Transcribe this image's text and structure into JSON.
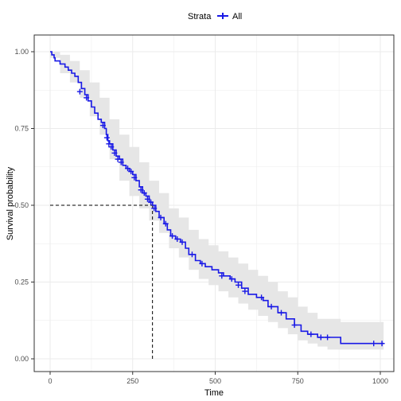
{
  "chart_data": {
    "type": "line",
    "subtype": "kaplan-meier survival curve with confidence band",
    "xlabel": "Time",
    "ylabel": "Survival probability",
    "xlim": [
      0,
      1022
    ],
    "ylim": [
      0,
      1.0
    ],
    "x_ticks": [
      0,
      250,
      500,
      750,
      1000
    ],
    "x_tick_labels": [
      "0",
      "250",
      "500",
      "750",
      "1000"
    ],
    "y_ticks": [
      0,
      0.25,
      0.5,
      0.75,
      1.0
    ],
    "y_tick_labels": [
      "0.00",
      "0.25",
      "0.50",
      "0.75",
      "1.00"
    ],
    "grid": true,
    "legend": {
      "position": "top",
      "title": "Strata",
      "entries": [
        "All"
      ]
    },
    "colors": {
      "curve": "#1919e6",
      "band": "#e6e6e6",
      "grid": "#ebebeb",
      "median_line": "#000000"
    },
    "median": {
      "time": 310,
      "survival": 0.5
    },
    "series": [
      {
        "name": "All",
        "steps": [
          [
            0,
            1.0
          ],
          [
            5,
            0.99
          ],
          [
            12,
            0.98
          ],
          [
            15,
            0.97
          ],
          [
            30,
            0.96
          ],
          [
            45,
            0.95
          ],
          [
            55,
            0.94
          ],
          [
            65,
            0.93
          ],
          [
            75,
            0.92
          ],
          [
            85,
            0.9
          ],
          [
            95,
            0.88
          ],
          [
            105,
            0.86
          ],
          [
            115,
            0.84
          ],
          [
            125,
            0.82
          ],
          [
            135,
            0.8
          ],
          [
            145,
            0.78
          ],
          [
            155,
            0.77
          ],
          [
            165,
            0.75
          ],
          [
            170,
            0.73
          ],
          [
            175,
            0.71
          ],
          [
            180,
            0.7
          ],
          [
            190,
            0.68
          ],
          [
            200,
            0.66
          ],
          [
            210,
            0.65
          ],
          [
            220,
            0.63
          ],
          [
            230,
            0.62
          ],
          [
            240,
            0.61
          ],
          [
            250,
            0.6
          ],
          [
            260,
            0.58
          ],
          [
            270,
            0.56
          ],
          [
            280,
            0.54
          ],
          [
            290,
            0.53
          ],
          [
            300,
            0.51
          ],
          [
            310,
            0.5
          ],
          [
            320,
            0.48
          ],
          [
            330,
            0.46
          ],
          [
            345,
            0.44
          ],
          [
            355,
            0.42
          ],
          [
            365,
            0.4
          ],
          [
            380,
            0.39
          ],
          [
            395,
            0.38
          ],
          [
            410,
            0.36
          ],
          [
            420,
            0.34
          ],
          [
            440,
            0.32
          ],
          [
            455,
            0.31
          ],
          [
            470,
            0.3
          ],
          [
            490,
            0.29
          ],
          [
            510,
            0.28
          ],
          [
            525,
            0.27
          ],
          [
            545,
            0.26
          ],
          [
            560,
            0.25
          ],
          [
            580,
            0.23
          ],
          [
            600,
            0.21
          ],
          [
            625,
            0.2
          ],
          [
            645,
            0.19
          ],
          [
            660,
            0.17
          ],
          [
            690,
            0.15
          ],
          [
            715,
            0.13
          ],
          [
            740,
            0.11
          ],
          [
            760,
            0.09
          ],
          [
            780,
            0.08
          ],
          [
            810,
            0.07
          ],
          [
            880,
            0.05
          ],
          [
            1010,
            0.05
          ]
        ],
        "censored": [
          [
            90,
            0.87
          ],
          [
            110,
            0.85
          ],
          [
            160,
            0.76
          ],
          [
            172,
            0.72
          ],
          [
            178,
            0.7
          ],
          [
            185,
            0.69
          ],
          [
            195,
            0.67
          ],
          [
            205,
            0.65
          ],
          [
            215,
            0.64
          ],
          [
            235,
            0.62
          ],
          [
            245,
            0.61
          ],
          [
            255,
            0.59
          ],
          [
            275,
            0.55
          ],
          [
            285,
            0.54
          ],
          [
            295,
            0.52
          ],
          [
            305,
            0.51
          ],
          [
            315,
            0.49
          ],
          [
            335,
            0.46
          ],
          [
            350,
            0.44
          ],
          [
            370,
            0.4
          ],
          [
            385,
            0.39
          ],
          [
            400,
            0.38
          ],
          [
            430,
            0.34
          ],
          [
            460,
            0.31
          ],
          [
            520,
            0.27
          ],
          [
            550,
            0.26
          ],
          [
            570,
            0.24
          ],
          [
            590,
            0.22
          ],
          [
            640,
            0.2
          ],
          [
            670,
            0.17
          ],
          [
            700,
            0.15
          ],
          [
            740,
            0.11
          ],
          [
            790,
            0.08
          ],
          [
            820,
            0.07
          ],
          [
            840,
            0.07
          ],
          [
            980,
            0.05
          ],
          [
            1005,
            0.05
          ]
        ]
      }
    ],
    "band": {
      "upper": [
        [
          0,
          1.0
        ],
        [
          30,
          0.99
        ],
        [
          60,
          0.97
        ],
        [
          90,
          0.94
        ],
        [
          120,
          0.9
        ],
        [
          150,
          0.85
        ],
        [
          180,
          0.78
        ],
        [
          210,
          0.73
        ],
        [
          240,
          0.69
        ],
        [
          270,
          0.64
        ],
        [
          300,
          0.58
        ],
        [
          330,
          0.54
        ],
        [
          360,
          0.49
        ],
        [
          390,
          0.46
        ],
        [
          420,
          0.42
        ],
        [
          450,
          0.39
        ],
        [
          480,
          0.37
        ],
        [
          510,
          0.35
        ],
        [
          540,
          0.33
        ],
        [
          570,
          0.31
        ],
        [
          600,
          0.29
        ],
        [
          630,
          0.27
        ],
        [
          660,
          0.25
        ],
        [
          690,
          0.22
        ],
        [
          720,
          0.2
        ],
        [
          750,
          0.17
        ],
        [
          780,
          0.15
        ],
        [
          810,
          0.13
        ],
        [
          840,
          0.13
        ],
        [
          880,
          0.12
        ],
        [
          1010,
          0.12
        ]
      ],
      "lower": [
        [
          0,
          0.98
        ],
        [
          30,
          0.93
        ],
        [
          60,
          0.9
        ],
        [
          90,
          0.85
        ],
        [
          120,
          0.79
        ],
        [
          150,
          0.73
        ],
        [
          180,
          0.65
        ],
        [
          210,
          0.58
        ],
        [
          240,
          0.53
        ],
        [
          270,
          0.49
        ],
        [
          300,
          0.45
        ],
        [
          330,
          0.41
        ],
        [
          360,
          0.36
        ],
        [
          390,
          0.33
        ],
        [
          420,
          0.29
        ],
        [
          450,
          0.26
        ],
        [
          480,
          0.24
        ],
        [
          510,
          0.22
        ],
        [
          540,
          0.2
        ],
        [
          570,
          0.18
        ],
        [
          600,
          0.16
        ],
        [
          630,
          0.14
        ],
        [
          660,
          0.12
        ],
        [
          690,
          0.1
        ],
        [
          720,
          0.08
        ],
        [
          750,
          0.06
        ],
        [
          780,
          0.05
        ],
        [
          810,
          0.04
        ],
        [
          840,
          0.03
        ],
        [
          880,
          0.03
        ],
        [
          1010,
          0.02
        ]
      ]
    }
  }
}
